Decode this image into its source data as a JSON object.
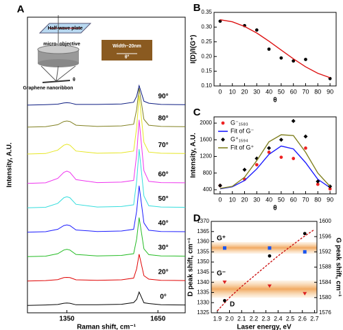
{
  "chart_data": [
    {
      "type": "line",
      "label": "A",
      "xlabel": "Raman shift, cm⁻¹",
      "ylabel": "Intensity, A.U.",
      "xlim": [
        1220,
        1740
      ],
      "ylim": [
        -0.3,
        11.8
      ],
      "xticks": [
        1350,
        1650
      ],
      "series_labels": true,
      "annotations": [
        "Half-wave plate",
        "micro- objective",
        "Graphene nanoribbon",
        "θ",
        "Width~20nm",
        "θ°"
      ],
      "series": [
        {
          "name": "0°",
          "color": "#000000",
          "style": "line",
          "x": [
            1220,
            1280,
            1320,
            1340,
            1350,
            1360,
            1380,
            1450,
            1530,
            1570,
            1580,
            1588,
            1596,
            1604,
            1620,
            1660,
            1740
          ],
          "values": [
            0,
            0.02,
            0.04,
            0.09,
            0.1,
            0.09,
            0.03,
            0.03,
            0.05,
            0.12,
            0.25,
            0.55,
            0.33,
            0.11,
            0.08,
            0.03,
            0.02
          ]
        },
        {
          "name": "20°",
          "color": "#e00000",
          "style": "line",
          "x": [
            1220,
            1280,
            1320,
            1340,
            1350,
            1360,
            1380,
            1450,
            1530,
            1570,
            1580,
            1588,
            1596,
            1604,
            1620,
            1660,
            1740
          ],
          "values": [
            1,
            1.02,
            1.06,
            1.14,
            1.15,
            1.14,
            1.05,
            1.03,
            1.05,
            1.12,
            1.5,
            2.1,
            1.66,
            1.22,
            1.08,
            1.03,
            1.02
          ]
        },
        {
          "name": "30°",
          "color": "#22bb22",
          "style": "line",
          "x": [
            1220,
            1280,
            1320,
            1340,
            1350,
            1360,
            1380,
            1450,
            1530,
            1570,
            1580,
            1588,
            1596,
            1604,
            1620,
            1660,
            1740
          ],
          "values": [
            2,
            2.02,
            2.12,
            2.27,
            2.3,
            2.27,
            2.09,
            2.03,
            2.05,
            2.12,
            2.72,
            3.6,
            2.96,
            2.32,
            2.08,
            2.03,
            2.02
          ]
        },
        {
          "name": "40°",
          "color": "#1a1aff",
          "style": "line",
          "x": [
            1220,
            1280,
            1320,
            1340,
            1350,
            1360,
            1380,
            1450,
            1530,
            1570,
            1580,
            1588,
            1596,
            1604,
            1620,
            1660,
            1740
          ],
          "values": [
            3,
            3.02,
            3.12,
            3.27,
            3.3,
            3.27,
            3.09,
            3.03,
            3.05,
            3.12,
            3.86,
            4.9,
            4.14,
            3.38,
            3.08,
            3.03,
            3.02
          ]
        },
        {
          "name": "50°",
          "color": "#33dddd",
          "style": "line",
          "x": [
            1220,
            1280,
            1320,
            1340,
            1350,
            1360,
            1380,
            1450,
            1530,
            1570,
            1580,
            1588,
            1596,
            1604,
            1620,
            1660,
            1740
          ],
          "values": [
            4,
            4.02,
            4.18,
            4.41,
            4.45,
            4.41,
            4.14,
            4.03,
            4.05,
            4.12,
            5.08,
            6.4,
            5.44,
            4.48,
            4.08,
            4.03,
            4.02
          ]
        },
        {
          "name": "60°",
          "color": "#ee33ee",
          "style": "line",
          "x": [
            1220,
            1280,
            1320,
            1340,
            1350,
            1360,
            1380,
            1450,
            1530,
            1570,
            1580,
            1588,
            1596,
            1604,
            1620,
            1660,
            1740
          ],
          "values": [
            5,
            5.02,
            5.2,
            5.45,
            5.5,
            5.45,
            5.15,
            5.03,
            5.05,
            5.12,
            6.17,
            7.6,
            6.56,
            5.52,
            5.08,
            5.03,
            5.02
          ]
        },
        {
          "name": "70°",
          "color": "#e6e622",
          "style": "line",
          "x": [
            1220,
            1280,
            1320,
            1340,
            1350,
            1360,
            1380,
            1450,
            1530,
            1570,
            1580,
            1588,
            1596,
            1604,
            1620,
            1660,
            1740
          ],
          "values": [
            6.2,
            6.22,
            6.36,
            6.56,
            6.6,
            6.56,
            6.32,
            6.23,
            6.25,
            6.32,
            7.28,
            8.6,
            7.64,
            6.68,
            6.28,
            6.23,
            6.22
          ]
        },
        {
          "name": "80°",
          "color": "#808020",
          "style": "line",
          "x": [
            1220,
            1280,
            1320,
            1340,
            1350,
            1360,
            1380,
            1450,
            1530,
            1570,
            1580,
            1588,
            1596,
            1604,
            1620,
            1660,
            1740
          ],
          "values": [
            7.3,
            7.32,
            7.4,
            7.53,
            7.55,
            7.53,
            7.38,
            7.33,
            7.35,
            7.42,
            8.02,
            8.9,
            8.26,
            7.62,
            7.38,
            7.33,
            7.32
          ]
        },
        {
          "name": "90°",
          "color": "#0a1a80",
          "style": "line",
          "x": [
            1220,
            1280,
            1320,
            1340,
            1350,
            1360,
            1380,
            1450,
            1530,
            1570,
            1580,
            1588,
            1596,
            1604,
            1620,
            1660,
            1740
          ],
          "values": [
            8.2,
            8.22,
            8.24,
            8.29,
            8.3,
            8.29,
            8.23,
            8.23,
            8.25,
            8.32,
            8.56,
            9.0,
            8.68,
            8.36,
            8.28,
            8.23,
            8.22
          ]
        }
      ]
    },
    {
      "type": "scatter",
      "label": "B",
      "xlabel": "θ",
      "ylabel": "I(D)/I(G⁺)",
      "xlim": [
        -5,
        95
      ],
      "ylim": [
        0.1,
        0.35
      ],
      "xticks": [
        0,
        10,
        20,
        30,
        40,
        50,
        60,
        70,
        80,
        90
      ],
      "yticks": [
        {
          "value": 0.1,
          "label": "0.10"
        },
        0.15,
        {
          "value": 0.2,
          "label": "0.20"
        },
        0.25,
        {
          "value": 0.3,
          "label": "0.30"
        },
        0.35
      ],
      "series": [
        {
          "color": "#000000",
          "style": "circle",
          "x": [
            0,
            20,
            30,
            40,
            50,
            60,
            70,
            90
          ],
          "values": [
            0.32,
            0.305,
            0.29,
            0.225,
            0.195,
            0.185,
            0.19,
            0.125
          ]
        },
        {
          "color": "#dd1111",
          "style": "line",
          "x": [
            0,
            10,
            20,
            30,
            40,
            50,
            60,
            70,
            80,
            90
          ],
          "values": [
            0.325,
            0.318,
            0.302,
            0.28,
            0.252,
            0.222,
            0.192,
            0.165,
            0.143,
            0.128
          ]
        }
      ]
    },
    {
      "type": "scatter",
      "label": "C",
      "xlabel": "θ",
      "ylabel": "Intensity, A.U.",
      "legend": "upper left",
      "xlim": [
        -5,
        95
      ],
      "ylim": [
        300,
        2150
      ],
      "xticks": [
        0,
        10,
        20,
        30,
        40,
        50,
        60,
        70,
        80,
        90
      ],
      "yticks": [
        400,
        800,
        1200,
        1600,
        2000
      ],
      "series": [
        {
          "name": "G⁻₁₅₈₃",
          "color": "#ee2222",
          "style": "circle",
          "x": [
            0,
            20,
            30,
            40,
            50,
            60,
            70,
            80,
            90
          ],
          "values": [
            500,
            650,
            1000,
            1300,
            1180,
            1150,
            1400,
            530,
            420
          ]
        },
        {
          "name": "Fit of G⁻",
          "color": "#1a1aff",
          "style": "line",
          "x": [
            0,
            10,
            20,
            30,
            40,
            50,
            60,
            70,
            80,
            90
          ],
          "values": [
            420,
            470,
            620,
            900,
            1250,
            1450,
            1380,
            1050,
            650,
            450
          ]
        },
        {
          "name": "G⁺₁₅₉₄",
          "color": "#000000",
          "style": "diamond",
          "x": [
            0,
            20,
            30,
            40,
            50,
            60,
            70,
            80,
            90
          ],
          "values": [
            500,
            880,
            1150,
            1400,
            1600,
            2050,
            1680,
            600,
            480
          ]
        },
        {
          "name": "Fit of G⁺",
          "color": "#808020",
          "style": "line",
          "x": [
            0,
            10,
            20,
            30,
            40,
            50,
            60,
            70,
            80,
            90
          ],
          "values": [
            430,
            480,
            700,
            1100,
            1550,
            1720,
            1700,
            1300,
            800,
            480
          ]
        }
      ]
    },
    {
      "type": "scatter",
      "label": "D",
      "xlabel": "Laser energy, eV",
      "ylabel": "D peak shift, cm⁻¹",
      "y2label": "G peak shift, cm⁻¹",
      "annotations": [
        "G⁺",
        "G⁻",
        "D"
      ],
      "xlim": [
        1.85,
        2.72
      ],
      "ylim": [
        1325,
        1370
      ],
      "y2lim": [
        1576,
        1600
      ],
      "xticks": [
        1.9,
        {
          "value": 2,
          "label": "2.0"
        },
        2.1,
        2.2,
        2.3,
        2.4,
        2.5,
        2.6,
        2.7
      ],
      "yticks": [
        1325,
        1330,
        1335,
        1340,
        1345,
        1350,
        1355,
        1360,
        1365,
        1370
      ],
      "y2ticks": [
        1576,
        1580,
        1584,
        1588,
        1592,
        1596,
        1600
      ],
      "series": [
        {
          "color": "#cc1111",
          "style": "dashed",
          "x": [
            1.9,
            2.0,
            2.1,
            2.2,
            2.3,
            2.4,
            2.5,
            2.6,
            2.7
          ],
          "values": [
            1326,
            1332.5,
            1338,
            1343,
            1348,
            1353,
            1357.5,
            1362,
            1366
          ]
        },
        {
          "color": "#000000",
          "style": "circle",
          "x": [
            1.96,
            2.33,
            2.62
          ],
          "values": [
            1331,
            1353,
            1364
          ]
        },
        {
          "color": "#1a55ee",
          "style": "square",
          "axis": "y2",
          "x": [
            1.96,
            2.33,
            2.62
          ],
          "values": [
            1593,
            1593,
            1592
          ]
        },
        {
          "color": "#dd2222",
          "style": "triangle",
          "axis": "y2",
          "x": [
            1.96,
            2.33,
            2.62
          ],
          "values": [
            1584,
            1583,
            1581
          ]
        }
      ]
    }
  ]
}
